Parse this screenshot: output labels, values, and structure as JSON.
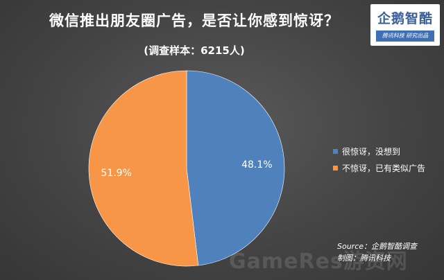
{
  "title": "微信推出朋友圈广告，是否让你感到惊讶？",
  "subtitle": "(调查样本：6215人)",
  "logo": {
    "name": "企鹅智酷",
    "tagline": "腾讯科技  研究出品"
  },
  "source": {
    "line1": "Source：企鹅智酷调查",
    "line2": "制图：腾讯科技"
  },
  "watermark": "GameRes游资网",
  "chart_data": {
    "type": "pie",
    "title": "微信推出朋友圈广告，是否让你感到惊讶？",
    "subtitle": "(调查样本：6215人)",
    "start_angle": "12 o'clock, clockwise",
    "legend_position": "right",
    "slices": [
      {
        "label": "很惊讶，没想到",
        "value": 48.1,
        "display": "48.1%",
        "color": "#4f81bd"
      },
      {
        "label": "不惊讶，已有类似广告",
        "value": 51.9,
        "display": "51.9%",
        "color": "#f79646"
      }
    ]
  }
}
